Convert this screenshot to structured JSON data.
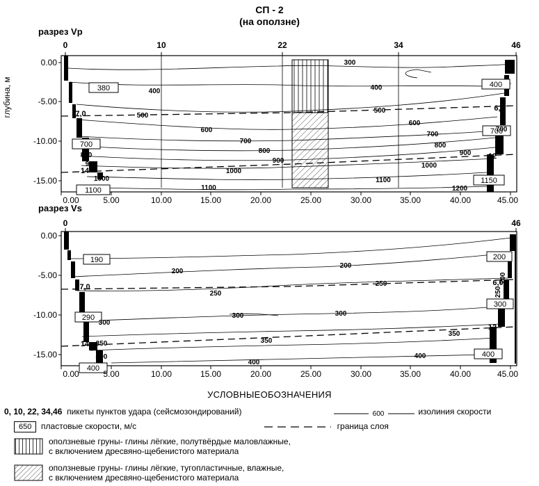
{
  "header": {
    "title": "СП - 2",
    "subtitle": "(на оползне)"
  },
  "sections": {
    "vp_label": "разрез Vp",
    "vs_label": "разрез Vs"
  },
  "vp_picket_labels": [
    "0",
    "10",
    "22",
    "34",
    "46"
  ],
  "vs_picket_labels": [
    "0",
    "46"
  ],
  "axis": {
    "ylabel": "глубина, м",
    "y_ticks": [
      "0.00",
      "-5.00",
      "-10.00",
      "-15.00"
    ],
    "x_ticks": [
      "0.00",
      "5.00",
      "10.00",
      "15.00",
      "20.00",
      "25.00",
      "30.00",
      "35.00",
      "40.00",
      "45.00"
    ]
  },
  "chart_data": [
    {
      "type": "contour",
      "name": "разрез Vp",
      "xlim": [
        0,
        46
      ],
      "ylim": [
        -16,
        0
      ],
      "layer_boundary": {
        "left_depth_label": "7,0",
        "right_depth_label": "6,0",
        "lower_left_label": "14",
        "lower_right_label": "12"
      },
      "boxed_velocities": [
        "380",
        "400",
        "700",
        "700",
        "1100",
        "1150"
      ],
      "isoline_labels": [
        "300",
        "400",
        "400",
        "500",
        "500",
        "600",
        "600",
        "700",
        "700",
        "700",
        "800",
        "800",
        "800",
        "900",
        "900",
        "900",
        "1000",
        "1000",
        "1000",
        "1100",
        "1100",
        "1200"
      ]
    },
    {
      "type": "contour",
      "name": "разрез Vs",
      "xlim": [
        0,
        46
      ],
      "ylim": [
        -16,
        0
      ],
      "layer_boundary": {
        "left_depth_label": "7,0",
        "right_depth_label": "6,0",
        "lower_left_label": "14",
        "lower_right_label": "12"
      },
      "boxed_velocities": [
        "190",
        "200",
        "290",
        "300",
        "400",
        "400"
      ],
      "isoline_labels": [
        "200",
        "200",
        "200",
        "250",
        "250",
        "250",
        "300",
        "300",
        "300",
        "350",
        "350",
        "350",
        "400",
        "400",
        "400"
      ]
    }
  ],
  "legend": {
    "title": "УСЛОВНЫЕОБОЗНАЧЕНИЯ",
    "pickets_bold": "0, 10, 22, 34,46",
    "pickets_text": "пикеты пунктов удара (сейсмозондирований)",
    "isoline_value": "600",
    "isoline_text": "изолиния скорости",
    "box_value": "650",
    "box_text": "пластовые скорости, м/с",
    "boundary_text": "граница слоя",
    "soil1_line1": "оползневые груны- глины лёгкие, полутвёрдые  маловлажные,",
    "soil1_line2": "с включением дресвяно-щебенистого материала",
    "soil2_line1": "оползневые груны- глины лёгкие, тугопластичные,  влажные,",
    "soil2_line2": "с включением дресвяно-щебенистого материала"
  }
}
